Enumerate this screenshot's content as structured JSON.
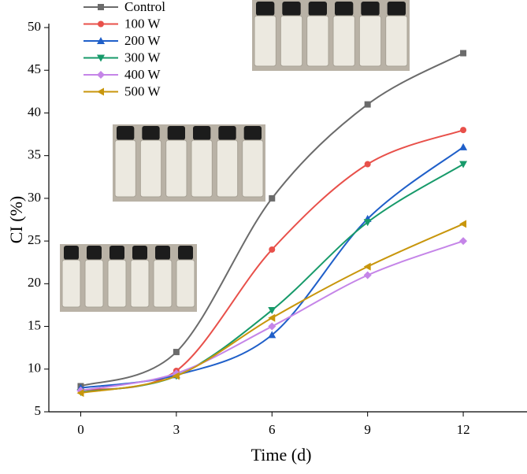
{
  "chart_data": {
    "type": "line",
    "x_label": "Time (d)",
    "y_label": "CI (%)",
    "x": [
      0,
      3,
      6,
      9,
      12
    ],
    "xlim": [
      -1,
      14
    ],
    "xticks": [
      0,
      3,
      6,
      9,
      12
    ],
    "ylim": [
      5,
      50
    ],
    "yticks": [
      5,
      10,
      15,
      20,
      25,
      30,
      35,
      40,
      45,
      50
    ],
    "smooth": true,
    "legend": "top-left",
    "series": [
      {
        "name": "Control",
        "color": "#6b6b6b",
        "marker": "square",
        "values": [
          8,
          12,
          30,
          41,
          47
        ]
      },
      {
        "name": "100 W",
        "color": "#e8504a",
        "marker": "circle",
        "values": [
          7.5,
          9.8,
          24,
          34,
          38
        ]
      },
      {
        "name": "200 W",
        "color": "#1f5fc9",
        "marker": "triangle-up",
        "values": [
          7.8,
          9.3,
          14,
          27.6,
          36
        ]
      },
      {
        "name": "300 W",
        "color": "#179a6a",
        "marker": "triangle-down",
        "values": [
          7.3,
          9.2,
          16.9,
          27.2,
          34
        ]
      },
      {
        "name": "400 W",
        "color": "#c585e8",
        "marker": "diamond",
        "values": [
          7.5,
          9.5,
          15,
          21,
          25
        ]
      },
      {
        "name": "500 W",
        "color": "#c8960c",
        "marker": "triangle-left",
        "values": [
          7.2,
          9.2,
          16,
          22,
          27
        ]
      }
    ]
  }
}
